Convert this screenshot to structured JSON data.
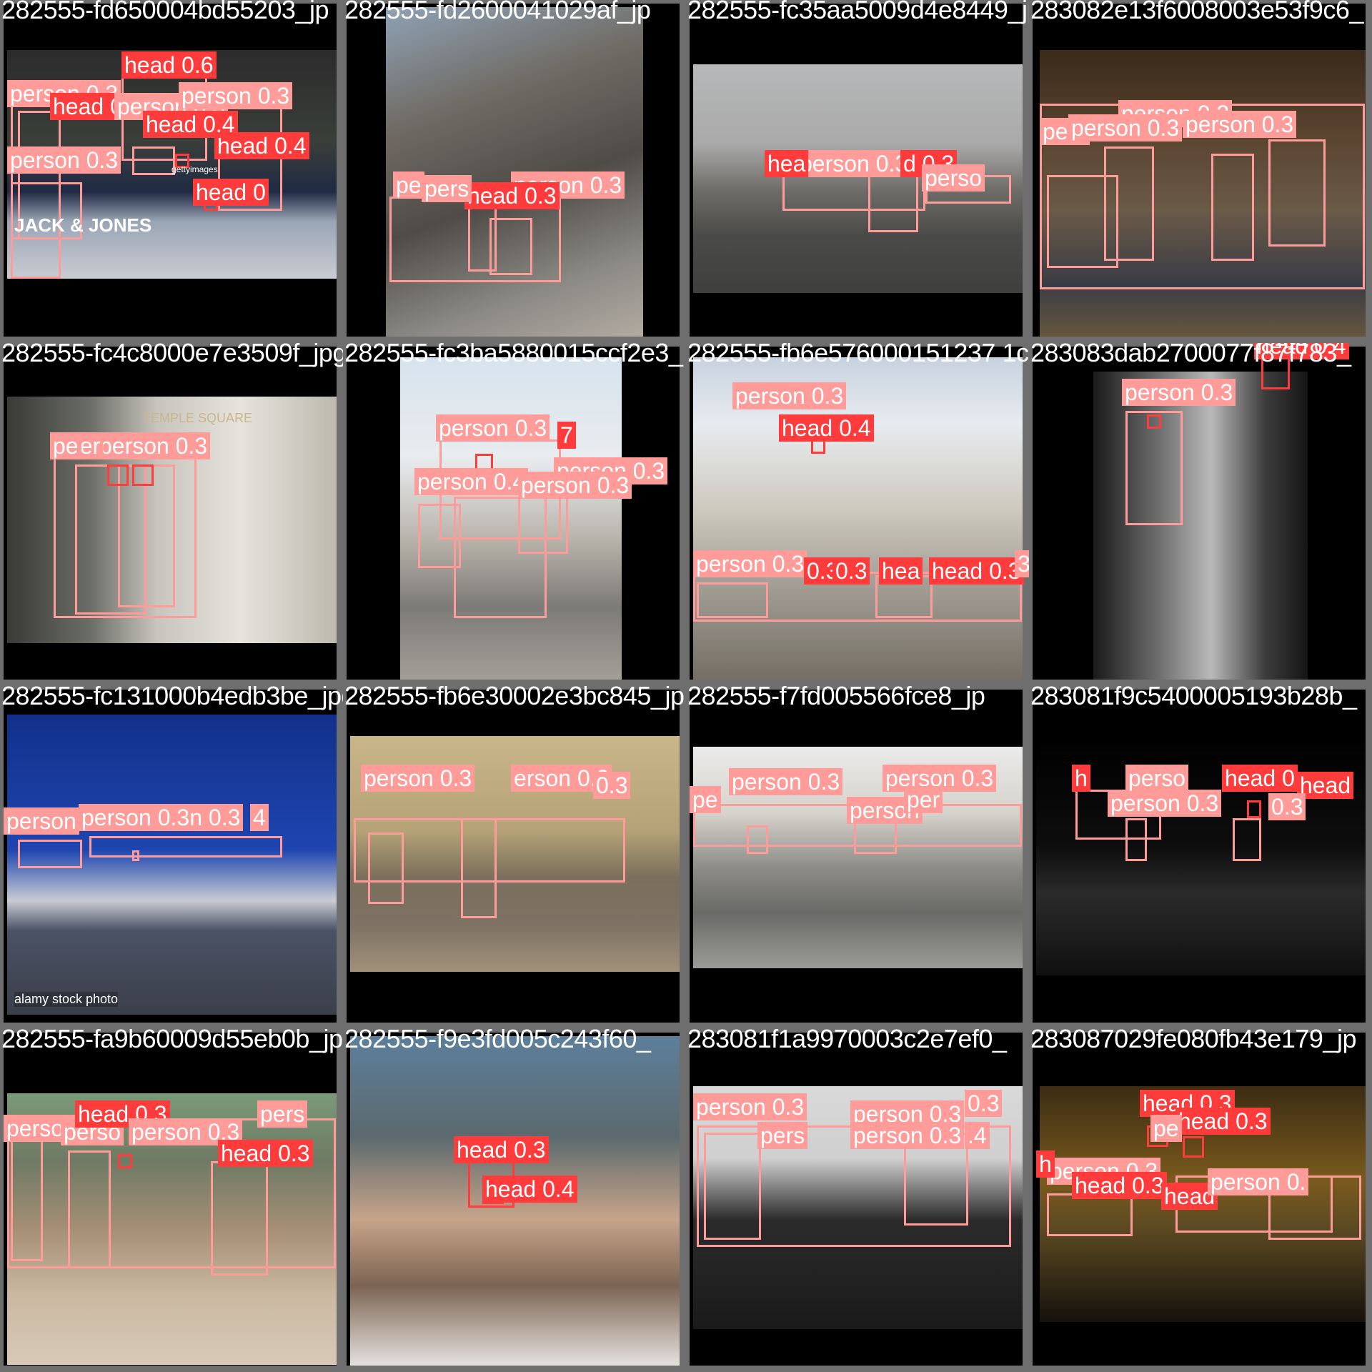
{
  "colors": {
    "tile_border": "#6e6e6e",
    "letterbox": "#000000",
    "person_box": "#ff9c99",
    "head_box": "#ff3b3b"
  },
  "tiles": [
    {
      "fname": "282555-fd650004bd55203_jp",
      "scene": "basketball",
      "labels": [
        {
          "cls": "head",
          "text": "head 0.6"
        },
        {
          "cls": "person",
          "text": "person 0.3"
        },
        {
          "cls": "head",
          "text": "head 0.3"
        },
        {
          "cls": "person",
          "text": "person 0.3"
        },
        {
          "cls": "person",
          "text": "person 0.3"
        },
        {
          "cls": "person",
          "text": "person 0.3"
        },
        {
          "cls": "head",
          "text": "head 0"
        },
        {
          "cls": "head",
          "text": "head 0.4"
        },
        {
          "cls": "head",
          "text": "head 0.4"
        }
      ],
      "watermarks": [
        "gettyimages",
        "JACK & JONES"
      ]
    },
    {
      "fname": "282555-fd2600041029af_jp",
      "scene": "cathedral",
      "labels": [
        {
          "cls": "person",
          "text": "person 0.3"
        },
        {
          "cls": "head",
          "text": "head 0.3"
        },
        {
          "cls": "person",
          "text": "pe"
        },
        {
          "cls": "person",
          "text": "pers"
        }
      ],
      "watermarks": []
    },
    {
      "fname": "282555-fc35aa5009d4e8449_jpg",
      "scene": "temple",
      "labels": [
        {
          "cls": "person",
          "text": "person 0.3"
        },
        {
          "cls": "head",
          "text": "hea"
        },
        {
          "cls": "head",
          "text": "d 0.3"
        },
        {
          "cls": "person",
          "text": "perso"
        }
      ],
      "watermarks": []
    },
    {
      "fname": "283082e13f6008003e53f9c6_",
      "scene": "hall",
      "labels": [
        {
          "cls": "person",
          "text": "person 0.3"
        },
        {
          "cls": "person",
          "text": "person 0.3"
        },
        {
          "cls": "person",
          "text": "pers"
        },
        {
          "cls": "person",
          "text": "person 0.3"
        }
      ],
      "watermarks": []
    },
    {
      "fname": "282555-fc4c8000e7e3509f_jpg",
      "scene": "girls",
      "labels": [
        {
          "cls": "person",
          "text": "person 0.3"
        },
        {
          "cls": "person",
          "text": "per"
        },
        {
          "cls": "person",
          "text": "pe"
        }
      ],
      "watermarks": [
        "TEMPLE SQUARE"
      ]
    },
    {
      "fname": "282555-fc3ba5880015ccf2e3_",
      "scene": "temple2",
      "labels": [
        {
          "cls": "person",
          "text": "person 0.3"
        },
        {
          "cls": "head",
          "text": "7"
        },
        {
          "cls": "person",
          "text": "person 0.4"
        },
        {
          "cls": "person",
          "text": "person 0.3"
        },
        {
          "cls": "person",
          "text": "person 0.3"
        }
      ],
      "watermarks": []
    },
    {
      "fname": "282555-fb6e576000151237 1c",
      "scene": "monument",
      "labels": [
        {
          "cls": "person",
          "text": "person 0.3"
        },
        {
          "cls": "head",
          "text": "head 0.4"
        },
        {
          "cls": "person",
          "text": "person 0.3"
        },
        {
          "cls": "head",
          "text": "0.3"
        },
        {
          "cls": "head",
          "text": "0.3"
        },
        {
          "cls": "head",
          "text": "hea"
        },
        {
          "cls": "head",
          "text": "head 0.3"
        },
        {
          "cls": "person",
          "text": "3 3"
        }
      ],
      "watermarks": []
    },
    {
      "fname": "283083dab2700077f87f783_",
      "scene": "sax",
      "labels": [
        {
          "cls": "head",
          "text": "head 0.4"
        },
        {
          "cls": "person",
          "text": "person 0.3"
        }
      ],
      "watermarks": []
    },
    {
      "fname": "282555-fc131000b4edb3be_jpg",
      "scene": "basilica",
      "labels": [
        {
          "cls": "person",
          "text": "person"
        },
        {
          "cls": "person",
          "text": "person 0.3n 0.3"
        },
        {
          "cls": "person",
          "text": "4"
        }
      ],
      "watermarks": [
        "alamy stock photo"
      ]
    },
    {
      "fname": "282555-fb6e30002e3bc845_jp",
      "scene": "jerusalem",
      "labels": [
        {
          "cls": "person",
          "text": "person 0.3"
        },
        {
          "cls": "person",
          "text": "erson 0.3"
        },
        {
          "cls": "person",
          "text": "0.3"
        }
      ],
      "watermarks": []
    },
    {
      "fname": "282555-f7fd005566fce8_jp",
      "scene": "colosseum",
      "labels": [
        {
          "cls": "person",
          "text": "person 0.3"
        },
        {
          "cls": "person",
          "text": "person 0.3"
        },
        {
          "cls": "person",
          "text": "pe"
        },
        {
          "cls": "person",
          "text": "person"
        },
        {
          "cls": "person",
          "text": "per"
        }
      ],
      "watermarks": []
    },
    {
      "fname": "283081f9c5400005193b28b_",
      "scene": "dancers",
      "labels": [
        {
          "cls": "head",
          "text": "head 0"
        },
        {
          "cls": "head",
          "text": "head"
        },
        {
          "cls": "person",
          "text": "person 0.3"
        },
        {
          "cls": "person",
          "text": "perso"
        },
        {
          "cls": "head",
          "text": "h"
        },
        {
          "cls": "person",
          "text": "0.3"
        }
      ],
      "watermarks": []
    },
    {
      "fname": "282555-fa9b60009d55eb0b_jp",
      "scene": "beach",
      "labels": [
        {
          "cls": "person",
          "text": "person 0.3"
        },
        {
          "cls": "person",
          "text": "perso"
        },
        {
          "cls": "head",
          "text": "head 0.3"
        },
        {
          "cls": "person",
          "text": "person 0.3"
        },
        {
          "cls": "head",
          "text": "head 0.3"
        },
        {
          "cls": "person",
          "text": "pers"
        }
      ],
      "watermarks": []
    },
    {
      "fname": "282555-f9e3fd005c243f60_",
      "scene": "selfie",
      "labels": [
        {
          "cls": "head",
          "text": "head 0.3"
        },
        {
          "cls": "head",
          "text": "head 0.4"
        }
      ],
      "watermarks": []
    },
    {
      "fname": "283081f1a9970003c2e7ef0_",
      "scene": "concert",
      "labels": [
        {
          "cls": "person",
          "text": "person 0.3"
        },
        {
          "cls": "person",
          "text": "person 0.3"
        },
        {
          "cls": "person",
          "text": "0.3"
        },
        {
          "cls": "person",
          "text": "pers"
        },
        {
          "cls": "person",
          "text": "person 0.3"
        },
        {
          "cls": "person",
          "text": ".4"
        }
      ],
      "watermarks": []
    },
    {
      "fname": "283087029fe080fb43e179_jp",
      "scene": "stage",
      "labels": [
        {
          "cls": "head",
          "text": "head 0.3"
        },
        {
          "cls": "head",
          "text": "head 0.3"
        },
        {
          "cls": "person",
          "text": "pe"
        },
        {
          "cls": "person",
          "text": "person 0.3"
        },
        {
          "cls": "head",
          "text": "h"
        },
        {
          "cls": "head",
          "text": "head 0.3"
        },
        {
          "cls": "head",
          "text": "head"
        },
        {
          "cls": "person",
          "text": "person 0."
        }
      ],
      "watermarks": []
    }
  ]
}
